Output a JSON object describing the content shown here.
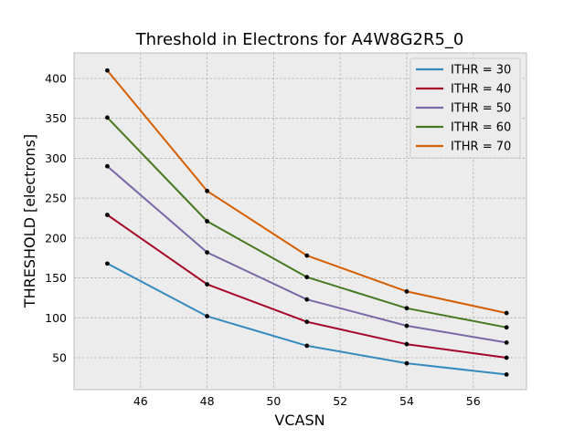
{
  "chart_data": {
    "type": "line",
    "title": "Threshold in Electrons for A4W8G2R5_0",
    "xlabel": "VCASN",
    "ylabel": "THRESHOLD [electrons]",
    "x": [
      45,
      48,
      51,
      54,
      57
    ],
    "xlim": [
      44.0,
      57.6
    ],
    "ylim": [
      10,
      432
    ],
    "xticks": [
      46,
      48,
      50,
      52,
      54,
      56
    ],
    "yticks": [
      50,
      100,
      150,
      200,
      250,
      300,
      350,
      400
    ],
    "grid": true,
    "legend_position": "top-right",
    "background": "#ececec",
    "marker_color": "#000000",
    "series": [
      {
        "name": "ITHR = 30",
        "color": "#348abd",
        "values": [
          168,
          102,
          65,
          43,
          29
        ]
      },
      {
        "name": "ITHR = 40",
        "color": "#a60628",
        "values": [
          229,
          142,
          95,
          67,
          50
        ]
      },
      {
        "name": "ITHR = 50",
        "color": "#7a68a6",
        "values": [
          290,
          182,
          123,
          90,
          69
        ]
      },
      {
        "name": "ITHR = 60",
        "color": "#467821",
        "values": [
          351,
          221,
          151,
          112,
          88
        ]
      },
      {
        "name": "ITHR = 70",
        "color": "#d55e00",
        "values": [
          410,
          259,
          178,
          133,
          106
        ]
      }
    ]
  }
}
